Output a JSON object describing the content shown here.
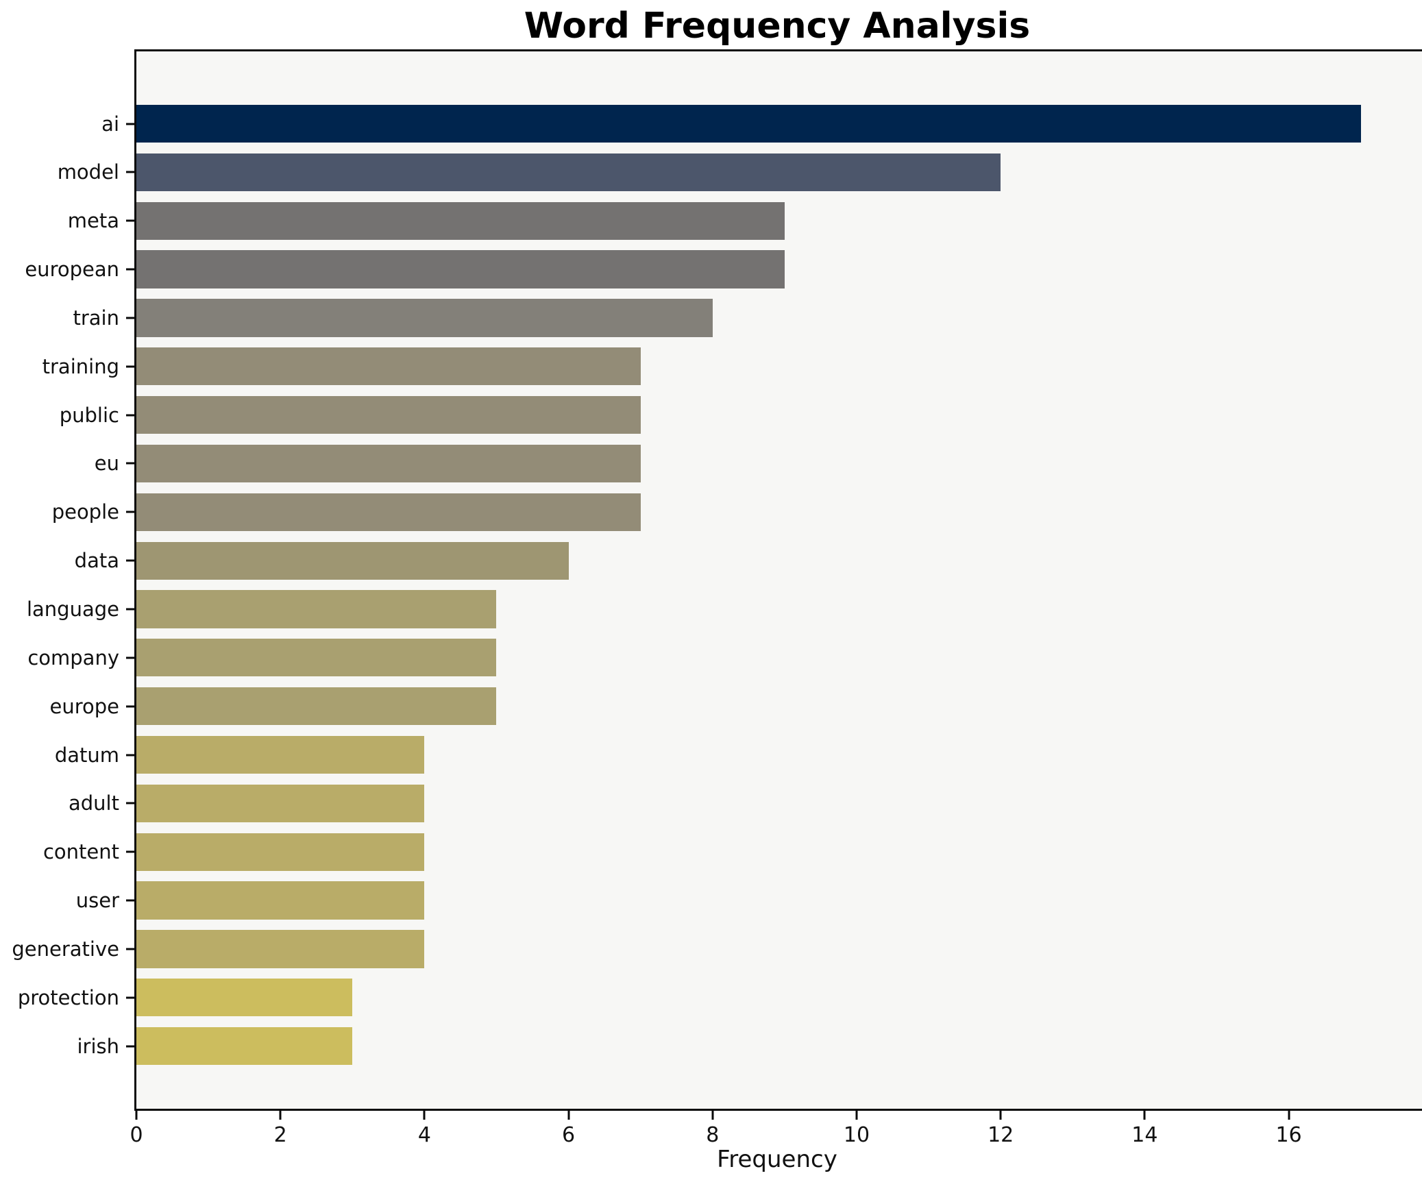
{
  "chart_data": {
    "type": "bar",
    "orientation": "horizontal",
    "title": "Word Frequency Analysis",
    "xlabel": "Frequency",
    "ylabel": "",
    "categories": [
      "ai",
      "model",
      "meta",
      "european",
      "train",
      "training",
      "public",
      "eu",
      "people",
      "data",
      "language",
      "company",
      "europe",
      "datum",
      "adult",
      "content",
      "user",
      "generative",
      "protection",
      "irish"
    ],
    "values": [
      17,
      12,
      9,
      9,
      8,
      7,
      7,
      7,
      7,
      6,
      5,
      5,
      5,
      4,
      4,
      4,
      4,
      4,
      3,
      3
    ],
    "bar_colors": [
      "#00254e",
      "#4c566b",
      "#747271",
      "#747271",
      "#838079",
      "#938c77",
      "#938c77",
      "#938c77",
      "#938c77",
      "#9e9672",
      "#a9a070",
      "#a9a070",
      "#a9a070",
      "#b9ac68",
      "#b9ac68",
      "#b9ac68",
      "#b9ac68",
      "#b9ac68",
      "#ccbd5e",
      "#ccbd5e"
    ],
    "xlim": [
      0,
      17.85
    ],
    "xticks": [
      0,
      2,
      4,
      6,
      8,
      10,
      12,
      14,
      16
    ],
    "grid": false,
    "legend": false,
    "plot_background": "#f7f7f5",
    "figure_background": "#ffffff",
    "spine_color": "#0a0a0a"
  }
}
